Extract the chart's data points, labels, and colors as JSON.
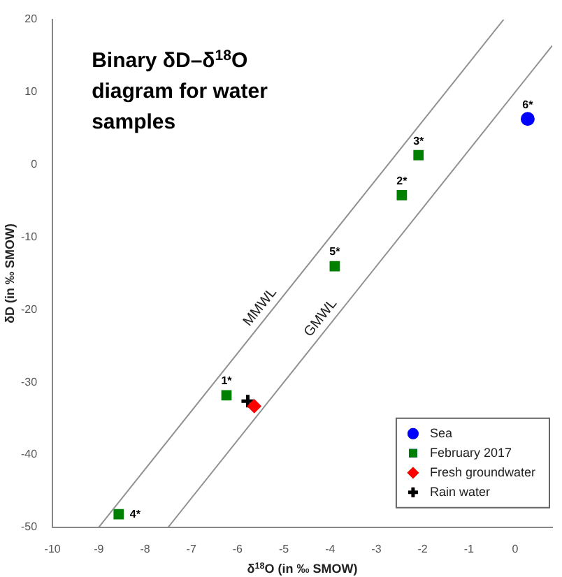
{
  "chart_data": {
    "type": "scatter",
    "title": "Binary δD–δ$^{18}$O diagram for water samples",
    "xlabel": "δ$^{18}$O (in ‰ SMOW)",
    "ylabel": "δD (in ‰ SMOW)",
    "xlim": [
      -10,
      0.8
    ],
    "xticks": [
      -10,
      -9,
      -8,
      -7,
      -6,
      -5,
      -4,
      -3,
      -2,
      -1,
      0
    ],
    "ylim": [
      -50,
      20
    ],
    "yticks": [
      -50,
      -40,
      -30,
      -20,
      -10,
      0,
      10,
      20
    ],
    "grid": false,
    "legend": "bottom right",
    "series": [
      {
        "name": "MMWL",
        "type": "line",
        "marker": "none",
        "color": "#909090",
        "x": [
          -9,
          -0.25
        ],
        "values": [
          -50,
          20
        ]
      },
      {
        "name": "GMWL",
        "type": "line",
        "marker": "none",
        "color": "#909090",
        "x": [
          -7.5,
          0.8
        ],
        "values": [
          -50,
          16.4
        ]
      },
      {
        "name": "Sea",
        "marker": "circle",
        "color": "#0000ff",
        "x": [
          0.27
        ],
        "values": [
          6.3
        ]
      },
      {
        "name": "February 2017",
        "marker": "square",
        "color": "#008000",
        "x": [
          -6.24,
          -2.45,
          -2.09,
          -8.57,
          -3.9
        ],
        "values": [
          -31.8,
          -4.2,
          1.3,
          -48.2,
          -14
        ]
      },
      {
        "name": "Fresh groundwater",
        "marker": "diamond",
        "color": "#ff0000",
        "x": [
          -5.64
        ],
        "values": [
          -33.3
        ]
      },
      {
        "name": "Rain water",
        "marker": "cross",
        "color": "#000000",
        "x": [
          -5.78
        ],
        "values": [
          -32.6
        ]
      }
    ],
    "annotations": [
      {
        "text": "1*",
        "x": -6.24,
        "y": -31.8
      },
      {
        "text": "2*",
        "x": -2.45,
        "y": -4.2
      },
      {
        "text": "3*",
        "x": -2.09,
        "y": 1.3
      },
      {
        "text": "4*",
        "x": -8.57,
        "y": -48.2
      },
      {
        "text": "5*",
        "x": -3.9,
        "y": -14
      },
      {
        "text": "6*",
        "x": 0.27,
        "y": 6.3
      }
    ]
  }
}
